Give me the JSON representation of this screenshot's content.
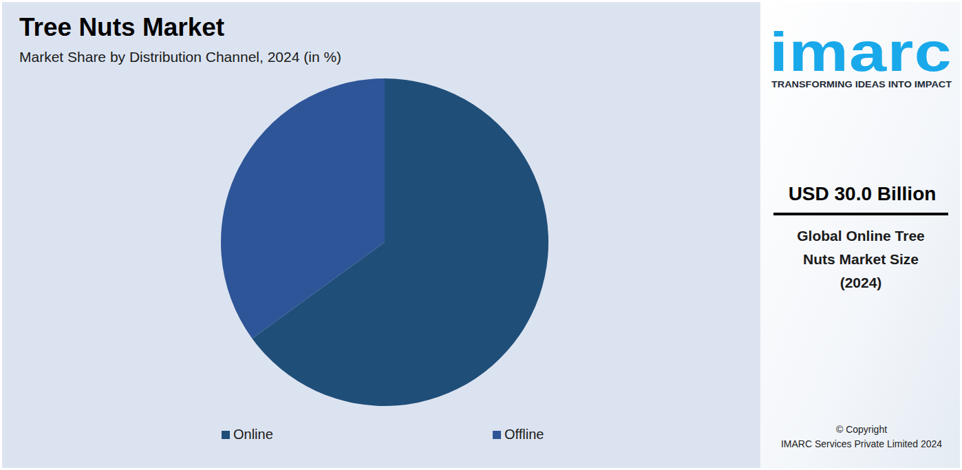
{
  "chart_data": {
    "type": "pie",
    "title": "Tree Nuts Market",
    "subtitle": "Market Share by Distribution Channel, 2024 (in %)",
    "categories": [
      "Online",
      "Offline"
    ],
    "values": [
      65,
      35
    ],
    "colors": [
      "#1f4e79",
      "#2e5597"
    ],
    "legend": "bottom"
  },
  "brand": {
    "logo": "imarc",
    "tagline": "TRANSFORMING IDEAS INTO IMPACT",
    "headline": "USD 30.0 Billion",
    "caption": [
      "Global Online Tree",
      "Nuts Market Size",
      "(2024)"
    ],
    "copyright": [
      "© Copyright",
      "IMARC Services Private Limited 2024"
    ]
  }
}
